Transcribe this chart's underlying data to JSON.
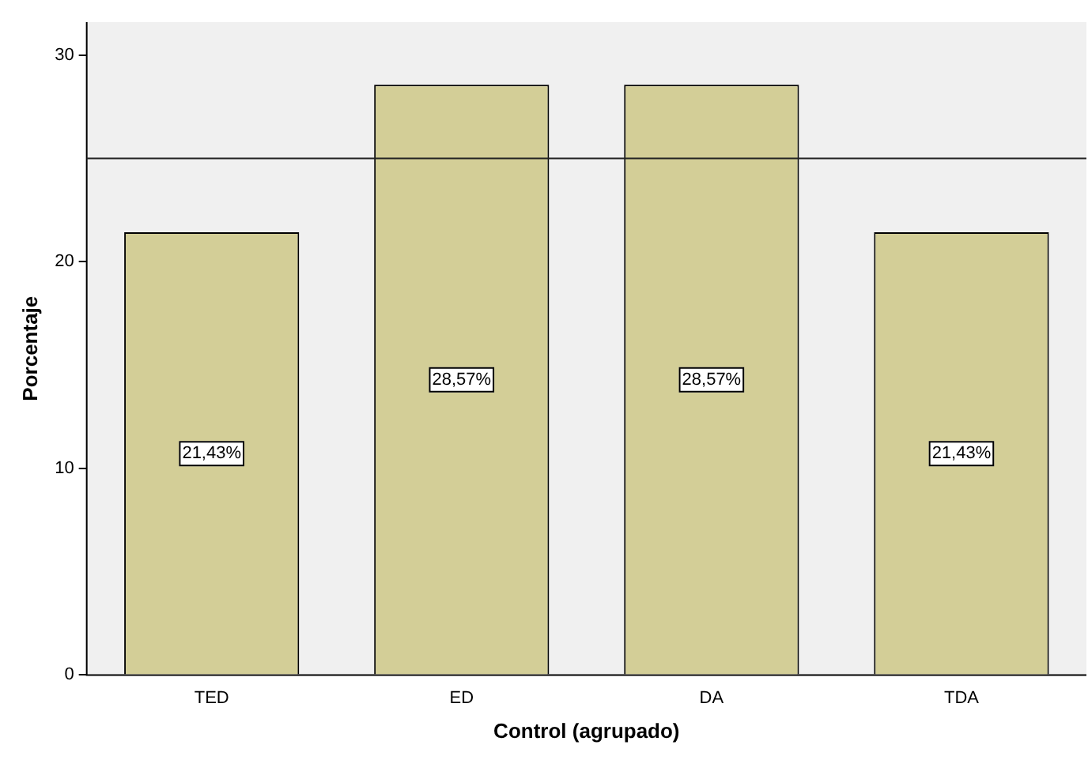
{
  "chart_data": {
    "type": "bar",
    "xlabel": "Control (agrupado)",
    "ylabel": "Porcentaje",
    "categories": [
      "TED",
      "ED",
      "DA",
      "TDA"
    ],
    "values": [
      21.43,
      28.57,
      28.57,
      21.43
    ],
    "value_labels": [
      "21,43%",
      "28,57%",
      "28,57%",
      "21,43%"
    ],
    "color": "#d3ce97",
    "ylim": [
      0,
      31.6
    ],
    "yticks": [
      0,
      10,
      20,
      30
    ],
    "ref_lines": [
      {
        "axis": "y",
        "value": 25,
        "label": null
      }
    ],
    "grid": false,
    "legend": false
  }
}
